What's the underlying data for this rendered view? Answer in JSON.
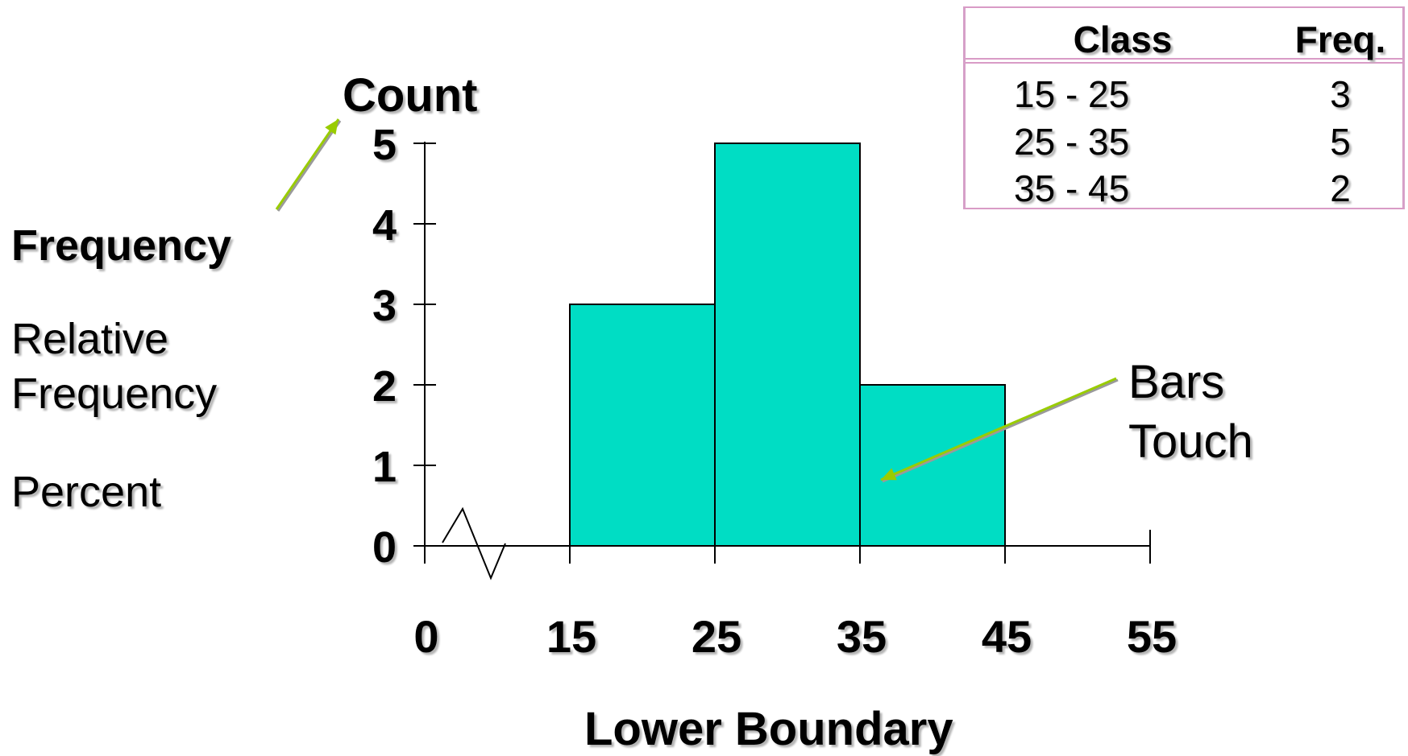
{
  "side_labels": {
    "frequency": "Frequency",
    "relative": "Relative Frequency",
    "percent": "Percent"
  },
  "annotation": {
    "bars_line1": "Bars",
    "bars_line2": "Touch"
  },
  "table": {
    "headers": [
      "Class",
      "Freq."
    ],
    "rows": [
      [
        "15 - 25",
        "3"
      ],
      [
        "25 - 35",
        "5"
      ],
      [
        "35 - 45",
        "2"
      ]
    ]
  },
  "colors": {
    "bar_fill": "#00DDC4",
    "arrow": "#99CC00",
    "table_border": "#D99BC6"
  },
  "chart_data": {
    "type": "bar",
    "ylabel": "Count",
    "xlabel": "Lower Boundary",
    "x_ticks": [
      "0",
      "15",
      "25",
      "35",
      "45",
      "55"
    ],
    "y_ticks": [
      "0",
      "1",
      "2",
      "3",
      "4",
      "5"
    ],
    "ylim": [
      0,
      5
    ],
    "axis_break": true,
    "bars": [
      {
        "from": 15,
        "to": 25,
        "value": 3
      },
      {
        "from": 25,
        "to": 35,
        "value": 5
      },
      {
        "from": 35,
        "to": 45,
        "value": 2
      }
    ]
  }
}
